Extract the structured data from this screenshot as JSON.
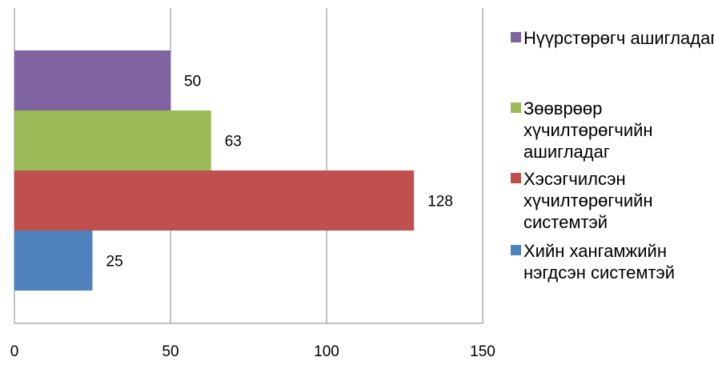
{
  "chart_data": {
    "type": "bar",
    "orientation": "horizontal",
    "title": "",
    "xlabel": "",
    "ylabel": "",
    "xlim": [
      0,
      150
    ],
    "x_ticks": [
      0,
      50,
      100,
      150
    ],
    "grid": true,
    "legend_position": "right",
    "series": [
      {
        "name": "Хийн хангамжийн нэгдсэн системтэй",
        "value": 25,
        "color": "#4f81bd"
      },
      {
        "name": "Хэсэгчилсэн хүчилтөрөгчийн системтэй",
        "value": 128,
        "color": "#c0504d"
      },
      {
        "name": "Зөөврөөр хүчилтөрөгчийн ашигладаг",
        "value": 63,
        "color": "#9bbb59"
      },
      {
        "name": "Нүүрстөрөгч ашигладаг",
        "value": 50,
        "color": "#8064a2"
      }
    ]
  },
  "legend": {
    "items": [
      {
        "label": "Нүүрстөрөгч ашигладаг",
        "color": "#8064a2"
      },
      {
        "label": "Зөөврөөр хүчилтөрөгчийн ашигладаг",
        "color": "#9bbb59"
      },
      {
        "label": "Хэсэгчилсэн хүчилтөрөгчийн системтэй",
        "color": "#c0504d"
      },
      {
        "label": "Хийн хангамжийн нэгдсэн системтэй",
        "color": "#4f81bd"
      }
    ]
  }
}
